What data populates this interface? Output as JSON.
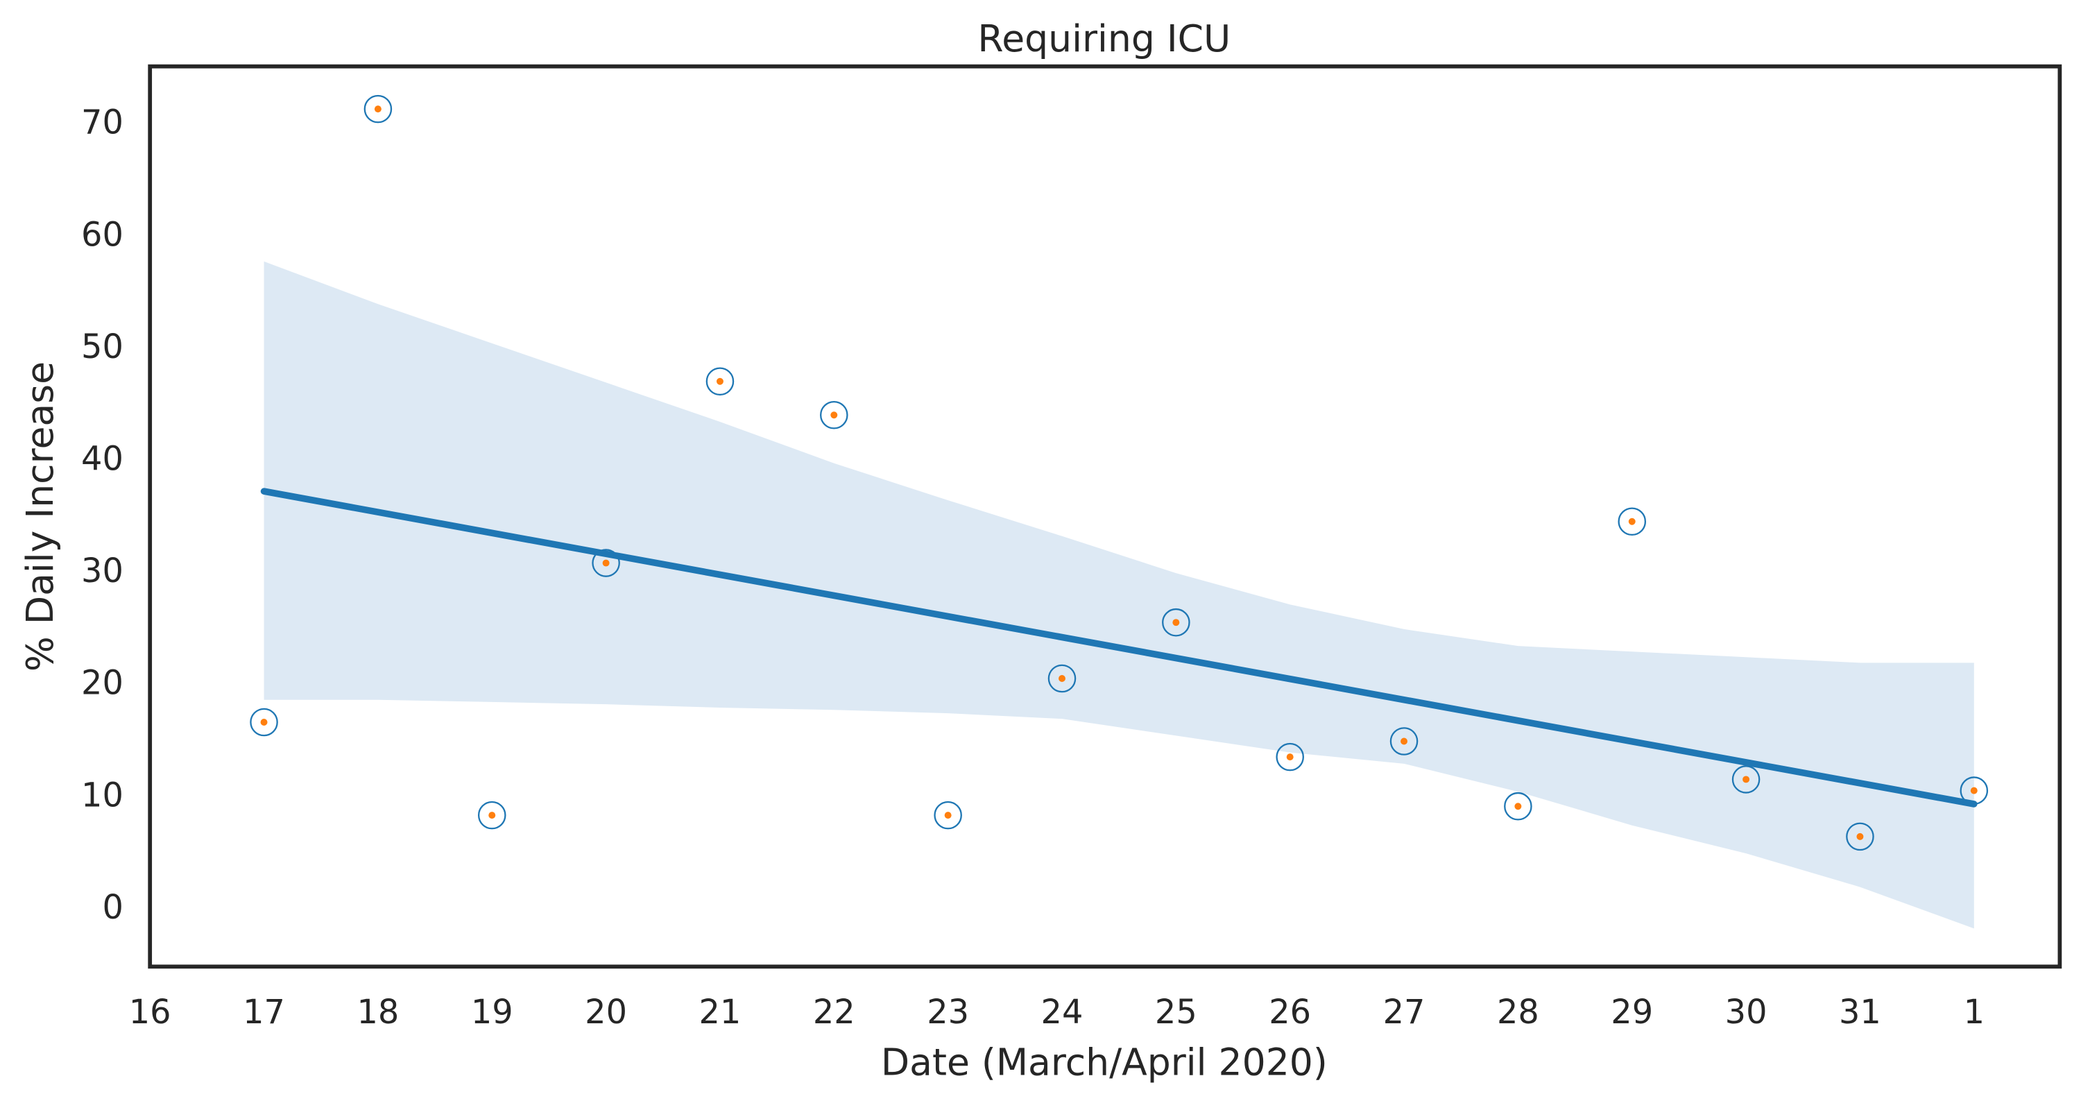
{
  "chart_data": {
    "type": "scatter",
    "title": "Requiring ICU",
    "x_label": "Date (March/April 2020)",
    "y_label": "% Daily Increase",
    "categories": [
      "16",
      "17",
      "18",
      "19",
      "20",
      "21",
      "22",
      "23",
      "24",
      "25",
      "26",
      "27",
      "28",
      "29",
      "30",
      "31",
      "1"
    ],
    "series": [
      {
        "type": "scatter",
        "color": "#1f77b4",
        "inner_color": "#ff7f0e",
        "values": [
          null,
          16.7,
          71.4,
          8.4,
          30.9,
          47.1,
          44.1,
          8.4,
          20.6,
          25.6,
          13.6,
          15,
          9.2,
          34.6,
          11.6,
          6.5,
          10.6
        ]
      },
      {
        "type": "line",
        "color": "#1f77b4",
        "values": [
          null,
          37.3,
          null,
          null,
          null,
          null,
          null,
          null,
          null,
          null,
          null,
          null,
          null,
          null,
          null,
          null,
          9.4
        ]
      }
    ],
    "band": {
      "color": "#dde9f4",
      "upper": [
        null,
        57.8,
        54,
        50.5,
        47,
        43.5,
        39.8,
        36.5,
        33.3,
        30,
        27.2,
        25,
        23.5,
        23,
        22.5,
        22,
        22
      ],
      "lower": [
        null,
        18.7,
        18.7,
        18.5,
        18.3,
        18,
        17.8,
        17.5,
        17,
        15.5,
        14,
        13,
        10.5,
        7.5,
        5,
        2,
        -1.7
      ]
    },
    "ylim": [
      -5.1,
      75.2
    ],
    "yticks": [
      0,
      10,
      20,
      30,
      40,
      50,
      60,
      70
    ]
  }
}
